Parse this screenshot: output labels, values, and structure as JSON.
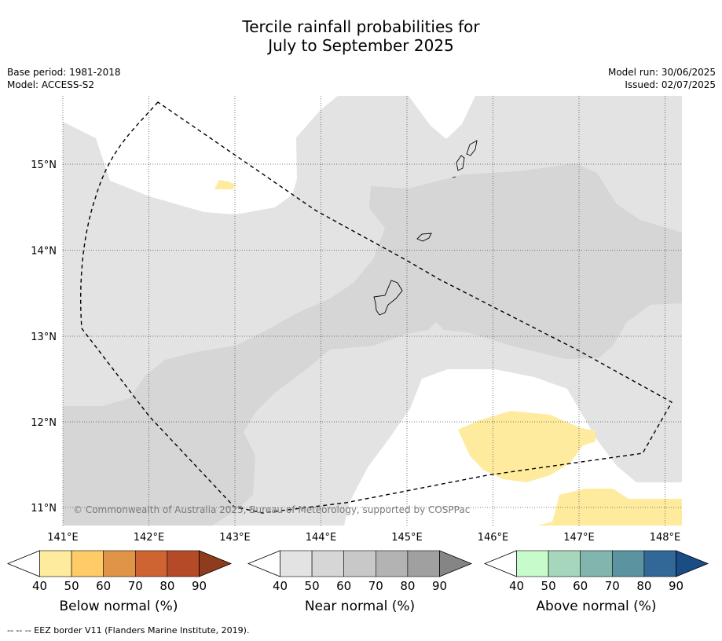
{
  "title": {
    "line1": "Tercile rainfall probabilities for",
    "line2": "July to September 2025"
  },
  "meta": {
    "base_period": "Base period: 1981-2018",
    "model": "Model: ACCESS-S2",
    "model_run": "Model run: 30/06/2025",
    "issued": "Issued: 02/07/2025"
  },
  "map": {
    "lon_labels": [
      "141°E",
      "142°E",
      "143°E",
      "144°E",
      "145°E",
      "146°E",
      "147°E",
      "148°E"
    ],
    "lat_labels": [
      "15°N",
      "14°N",
      "13°N",
      "12°N",
      "11°N"
    ],
    "copyright": "© Commonwealth of Australia 2025, Bureau of Meteorology, supported by COSPPac",
    "colors": {
      "near_40": "#e3e3e3",
      "near_50": "#d6d6d6",
      "below_40": "#feeb9e"
    }
  },
  "colorbars": [
    {
      "name": "below",
      "label": "Below normal (%)",
      "ticks": [
        "40",
        "50",
        "60",
        "70",
        "80",
        "90"
      ],
      "colors": [
        "#ffffff",
        "#feeb9e",
        "#fecb66",
        "#e09448",
        "#cf6432",
        "#b44a28",
        "#8f3b1d"
      ]
    },
    {
      "name": "near",
      "label": "Near normal (%)",
      "ticks": [
        "40",
        "50",
        "60",
        "70",
        "80",
        "90"
      ],
      "colors": [
        "#ffffff",
        "#e3e3e3",
        "#d6d6d6",
        "#c8c8c8",
        "#b3b3b3",
        "#a0a0a0",
        "#858585"
      ]
    },
    {
      "name": "above",
      "label": "Above normal (%)",
      "ticks": [
        "40",
        "50",
        "60",
        "70",
        "80",
        "90"
      ],
      "colors": [
        "#ffffff",
        "#c8fbcc",
        "#a6d7bd",
        "#82b5ad",
        "#5b93a0",
        "#326898",
        "#1a4d86"
      ]
    }
  ],
  "footer": "--  --  -- EEZ border V11 (Flanders Marine Institute, 2019)."
}
